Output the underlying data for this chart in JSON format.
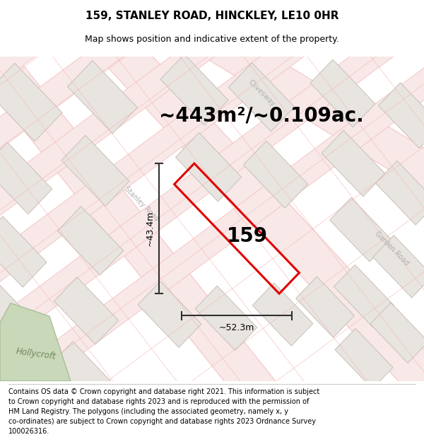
{
  "title": "159, STANLEY ROAD, HINCKLEY, LE10 0HR",
  "subtitle": "Map shows position and indicative extent of the property.",
  "area_text": "~443m²/~0.109ac.",
  "property_number": "159",
  "dim_height": "~43.4m",
  "dim_width": "~52.3m",
  "footer_lines": [
    "Contains OS data © Crown copyright and database right 2021. This information is subject",
    "to Crown copyright and database rights 2023 and is reproduced with the permission of",
    "HM Land Registry. The polygons (including the associated geometry, namely x, y",
    "co-ordinates) are subject to Crown copyright and database rights 2023 Ordnance Survey",
    "100026316."
  ],
  "map_bg": "#ffffff",
  "road_line_color": "#f5b8b8",
  "road_fill_color": "#f8e8e8",
  "building_fill": "#e8e4e0",
  "building_edge": "#c8c0b8",
  "property_color": "#e00000",
  "property_lw": 2.2,
  "arrow_color": "#303030",
  "title_fontsize": 11,
  "subtitle_fontsize": 9,
  "area_fontsize": 20,
  "number_fontsize": 20,
  "dim_fontsize": 9,
  "footer_fontsize": 7,
  "road_label_color": "#b0b0b0",
  "road_label_size": 7,
  "green_color": "#c8d8b8",
  "green_edge": "#a0b890",
  "hollycroft_color": "#708860"
}
